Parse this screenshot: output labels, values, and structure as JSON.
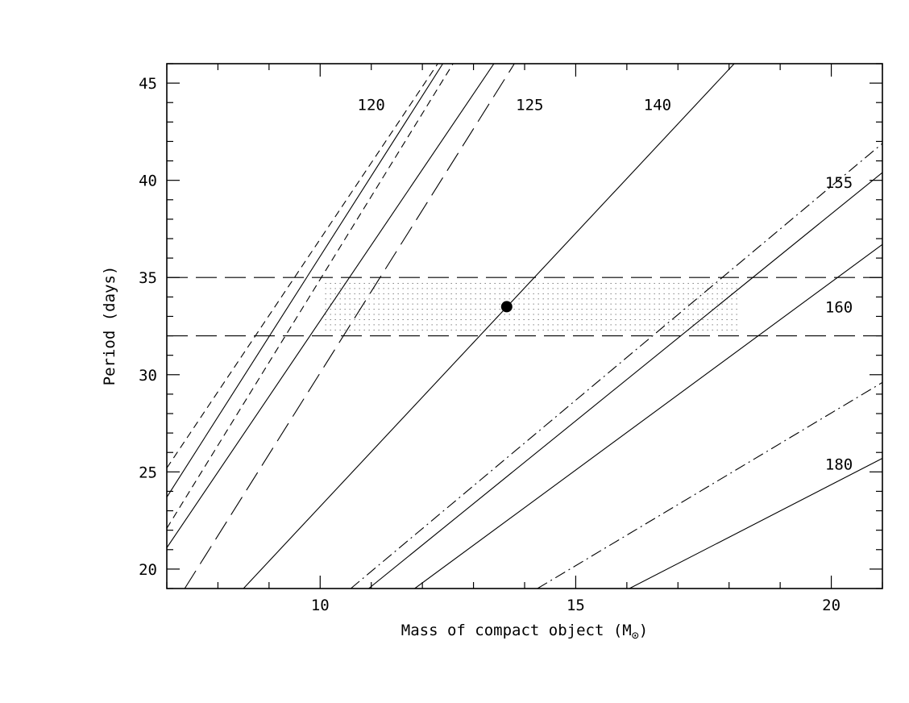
{
  "chart_data": {
    "type": "line",
    "title": "",
    "xlabel": "Mass of compact object (M",
    "xlabel_symbol": "⊙",
    "xlabel_close": ")",
    "ylabel": "Period (days)",
    "xlim": [
      7,
      21
    ],
    "ylim": [
      19,
      46
    ],
    "x_ticks": [
      10,
      15,
      20
    ],
    "y_ticks": [
      20,
      25,
      30,
      35,
      40,
      45
    ],
    "grid": false,
    "series": [
      {
        "style": "dashed",
        "points": [
          [
            7,
            25.2
          ],
          [
            12.3,
            46
          ]
        ]
      },
      {
        "style": "solid",
        "points": [
          [
            7,
            23.7
          ],
          [
            12.4,
            46
          ]
        ]
      },
      {
        "style": "dashed",
        "points": [
          [
            7,
            22.1
          ],
          [
            12.6,
            46
          ]
        ]
      },
      {
        "style": "solid",
        "points": [
          [
            7,
            21.1
          ],
          [
            13.4,
            46
          ]
        ]
      },
      {
        "style": "long-dash",
        "points": [
          [
            7.35,
            19
          ],
          [
            13.8,
            46
          ]
        ]
      },
      {
        "style": "solid",
        "points": [
          [
            8.5,
            19
          ],
          [
            18.1,
            46
          ]
        ]
      },
      {
        "style": "dash-dot",
        "points": [
          [
            10.6,
            19
          ],
          [
            21,
            41.9
          ]
        ]
      },
      {
        "style": "solid",
        "points": [
          [
            10.95,
            19
          ],
          [
            21,
            40.4
          ]
        ]
      },
      {
        "style": "solid",
        "points": [
          [
            11.85,
            19
          ],
          [
            21,
            36.7
          ]
        ]
      },
      {
        "style": "dash-dot",
        "points": [
          [
            14.25,
            19
          ],
          [
            21,
            29.6
          ]
        ]
      },
      {
        "style": "solid",
        "points": [
          [
            16.05,
            19
          ],
          [
            21,
            25.7
          ]
        ]
      }
    ],
    "reference_lines": [
      {
        "style": "long-dash",
        "y": 35
      },
      {
        "style": "long-dash",
        "y": 32
      }
    ],
    "shaded_region": {
      "style": "dotted",
      "x": [
        10.1,
        18.2
      ],
      "y": [
        32.3,
        34.7
      ]
    },
    "marker": {
      "x": 13.65,
      "y": 33.5
    },
    "line_labels": [
      {
        "text": "120",
        "x": 11.0,
        "y": 43.9
      },
      {
        "text": "125",
        "x": 14.1,
        "y": 43.9
      },
      {
        "text": "140",
        "x": 16.6,
        "y": 43.9
      },
      {
        "text": "155",
        "x": 20.15,
        "y": 39.9
      },
      {
        "text": "160",
        "x": 20.15,
        "y": 33.5
      },
      {
        "text": "180",
        "x": 20.15,
        "y": 25.4
      }
    ]
  }
}
